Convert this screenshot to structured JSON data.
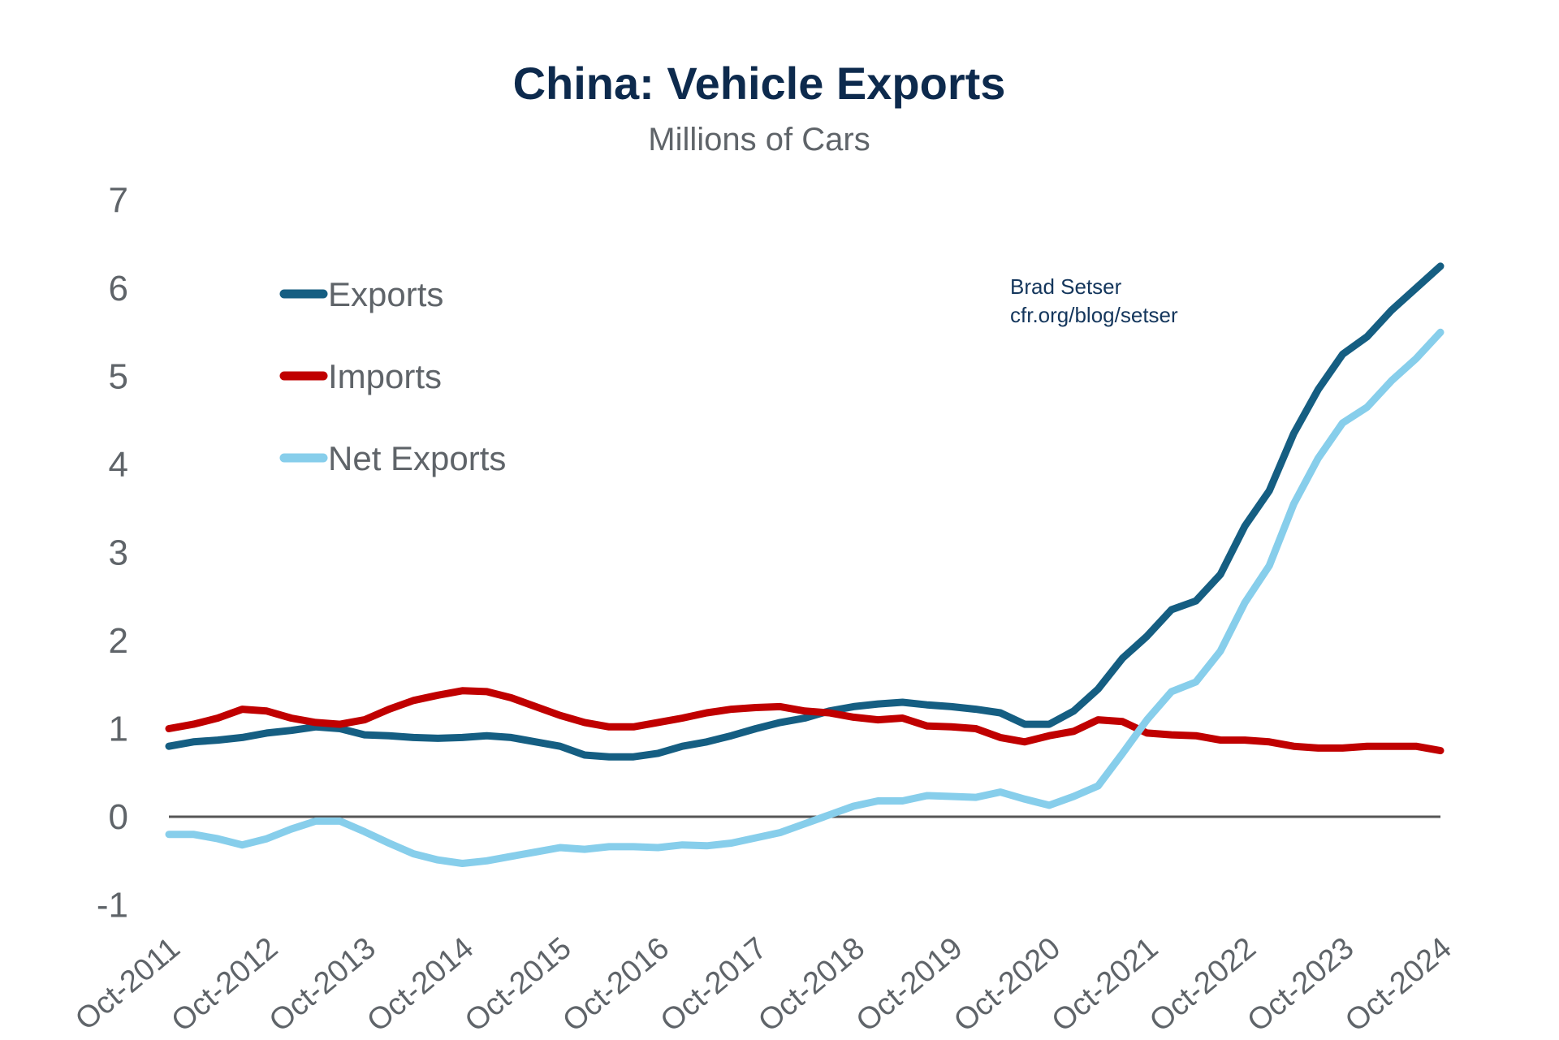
{
  "chart_data": {
    "type": "line",
    "title": "China: Vehicle Exports",
    "subtitle": "Millions of Cars",
    "annotation": [
      "Brad Setser",
      "cfr.org/blog/setser"
    ],
    "ylim": [
      -1,
      7
    ],
    "yticks": [
      -1,
      0,
      1,
      2,
      3,
      4,
      5,
      6,
      7
    ],
    "xticks": [
      "Oct-2011",
      "Oct-2012",
      "Oct-2013",
      "Oct-2014",
      "Oct-2015",
      "Oct-2016",
      "Oct-2017",
      "Oct-2018",
      "Oct-2019",
      "Oct-2020",
      "Oct-2021",
      "Oct-2022",
      "Oct-2023",
      "Oct-2024"
    ],
    "x_frequency": "quarterly, Oct-2011 to Oct-2024",
    "zero_line": true,
    "grid": false,
    "legend_placement": "top-left",
    "series": [
      {
        "name": "Exports",
        "color": "#155e82",
        "values": [
          0.8,
          0.85,
          0.87,
          0.9,
          0.95,
          0.98,
          1.02,
          1.0,
          0.93,
          0.92,
          0.9,
          0.89,
          0.9,
          0.92,
          0.9,
          0.85,
          0.8,
          0.7,
          0.68,
          0.68,
          0.72,
          0.8,
          0.85,
          0.92,
          1.0,
          1.07,
          1.12,
          1.2,
          1.25,
          1.28,
          1.3,
          1.27,
          1.25,
          1.22,
          1.18,
          1.05,
          1.05,
          1.2,
          1.45,
          1.8,
          2.05,
          2.35,
          2.45,
          2.75,
          3.3,
          3.7,
          4.35,
          4.85,
          5.25,
          5.45,
          5.75,
          6.0,
          6.25
        ]
      },
      {
        "name": "Imports",
        "color": "#c00000",
        "values": [
          1.0,
          1.05,
          1.12,
          1.22,
          1.2,
          1.12,
          1.07,
          1.05,
          1.1,
          1.22,
          1.32,
          1.38,
          1.43,
          1.42,
          1.35,
          1.25,
          1.15,
          1.07,
          1.02,
          1.02,
          1.07,
          1.12,
          1.18,
          1.22,
          1.24,
          1.25,
          1.2,
          1.18,
          1.13,
          1.1,
          1.12,
          1.03,
          1.02,
          1.0,
          0.9,
          0.85,
          0.92,
          0.97,
          1.1,
          1.08,
          0.95,
          0.93,
          0.92,
          0.87,
          0.87,
          0.85,
          0.8,
          0.78,
          0.78,
          0.8,
          0.8,
          0.8,
          0.75
        ]
      },
      {
        "name": "Net Exports",
        "color": "#87ceeb",
        "values": [
          -0.2,
          -0.2,
          -0.25,
          -0.32,
          -0.25,
          -0.14,
          -0.05,
          -0.05,
          -0.17,
          -0.3,
          -0.42,
          -0.49,
          -0.53,
          -0.5,
          -0.45,
          -0.4,
          -0.35,
          -0.37,
          -0.34,
          -0.34,
          -0.35,
          -0.32,
          -0.33,
          -0.3,
          -0.24,
          -0.18,
          -0.08,
          0.02,
          0.12,
          0.18,
          0.18,
          0.24,
          0.23,
          0.22,
          0.28,
          0.2,
          0.13,
          0.23,
          0.35,
          0.72,
          1.1,
          1.42,
          1.53,
          1.88,
          2.43,
          2.85,
          3.55,
          4.07,
          4.47,
          4.65,
          4.95,
          5.2,
          5.5
        ]
      }
    ]
  }
}
